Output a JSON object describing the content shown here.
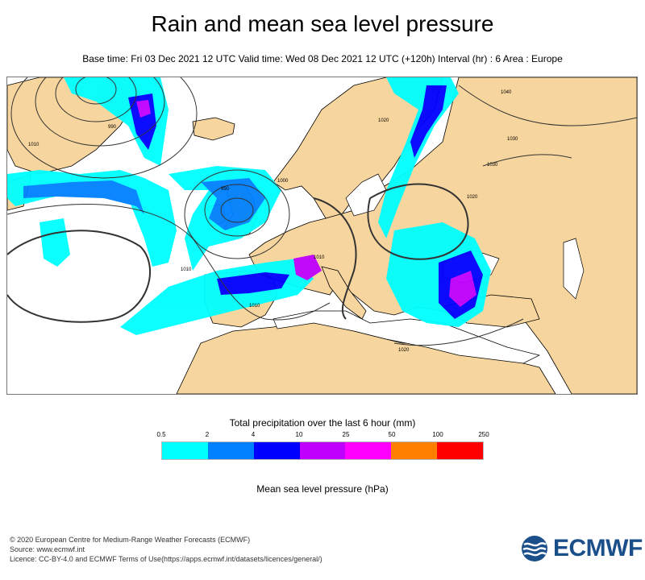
{
  "header": {
    "title": "Rain and mean sea level pressure",
    "subtitle": "Base time: Fri 03 Dec 2021 12 UTC Valid time: Wed 08 Dec 2021 12 UTC (+120h) Interval (hr) : 6 Area : Europe"
  },
  "map": {
    "isobar_labels": [
      "1040",
      "1030",
      "1020",
      "1010",
      "990",
      "1000",
      "1020",
      "1010",
      "1030",
      "1010",
      "1020",
      "1010",
      "990"
    ],
    "colors": {
      "land": "#f7d59e",
      "sea": "#ffffff",
      "coast": "#000000",
      "isobar": "#333333"
    }
  },
  "legend": {
    "precip_title": "Total precipitation over the last 6 hour (mm)",
    "ticks": [
      "0.5",
      "2",
      "4",
      "10",
      "25",
      "50",
      "100",
      "250"
    ],
    "colors": [
      "#00ffff",
      "#0080ff",
      "#0000ff",
      "#c000ff",
      "#ff00ff",
      "#ff8000",
      "#ff0000"
    ],
    "mslp_title": "Mean sea level pressure (hPa)"
  },
  "footer": {
    "line1": "© 2020 European Centre for Medium-Range Weather Forecasts (ECMWF)",
    "line2": "Source: www.ecmwf.int",
    "line3": "Licence: CC-BY-4.0 and ECMWF Terms of Use(https://apps.ecmwf.int/datasets/licences/general/)",
    "logo_text": "ECMWF"
  }
}
